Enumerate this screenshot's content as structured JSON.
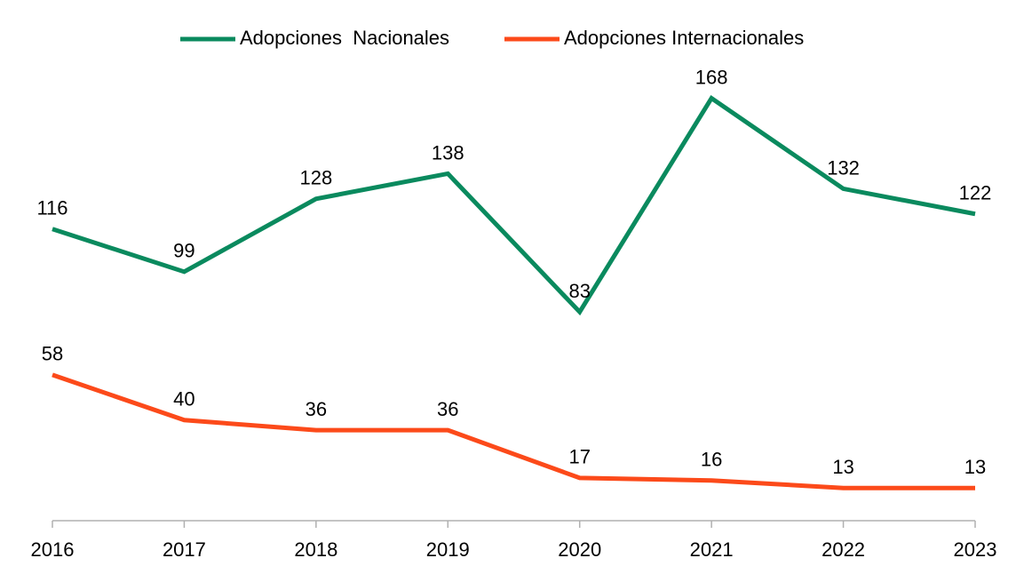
{
  "chart_data": {
    "type": "line",
    "categories": [
      "2016",
      "2017",
      "2018",
      "2019",
      "2020",
      "2021",
      "2022",
      "2023"
    ],
    "series": [
      {
        "name": "Adopciones  Nacionales",
        "color": "#0a8a5e",
        "values": [
          116,
          99,
          128,
          138,
          83,
          168,
          132,
          122
        ]
      },
      {
        "name": "Adopciones Internacionales",
        "color": "#fc4a1a",
        "values": [
          58,
          40,
          36,
          36,
          17,
          16,
          13,
          13
        ]
      }
    ],
    "ylim": [
      0,
      200
    ],
    "legend": "top"
  }
}
